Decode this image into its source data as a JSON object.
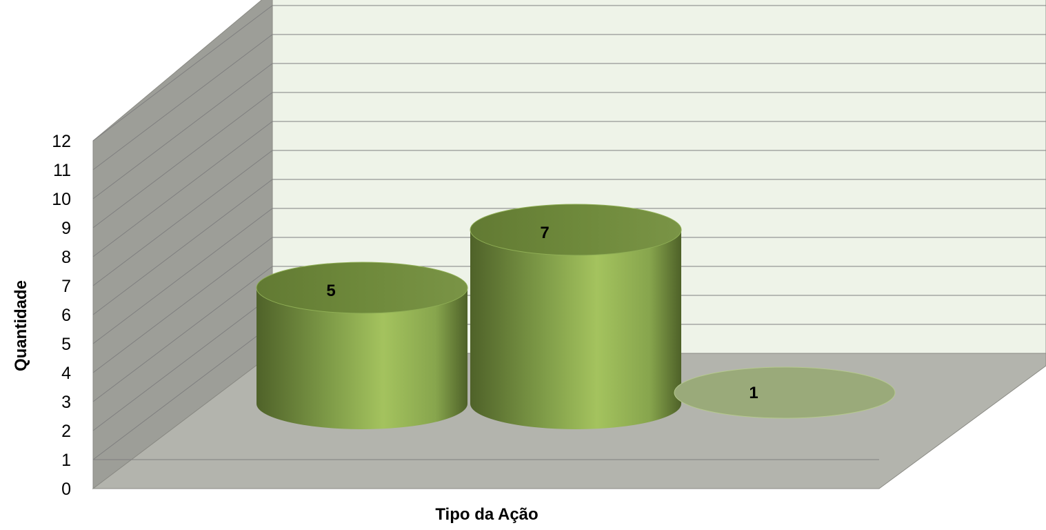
{
  "chart_data": {
    "type": "bar",
    "style": "3d-cylinder",
    "categories": [
      "",
      "",
      ""
    ],
    "values": [
      5,
      7,
      1
    ],
    "data_labels": [
      "5",
      "7",
      "1"
    ],
    "title": "",
    "xlabel": "Tipo da Ação",
    "ylabel": "Quantidade",
    "ylim": [
      0,
      12
    ],
    "yticks": [
      "0",
      "1",
      "2",
      "3",
      "4",
      "5",
      "6",
      "7",
      "8",
      "9",
      "10",
      "11",
      "12"
    ],
    "grid": true,
    "legend": "none"
  },
  "colors": {
    "back_wall": "#eef3e8",
    "side_wall": "#9d9e98",
    "floor": "#b3b4ad",
    "gridline": "#7f7f7f",
    "bar_dark": "#5d7034",
    "bar_mid": "#88a54e",
    "bar_light": "#a9c862",
    "bar_top": "#6f8a3c",
    "flat_ellipse": "#9aaa7a"
  }
}
